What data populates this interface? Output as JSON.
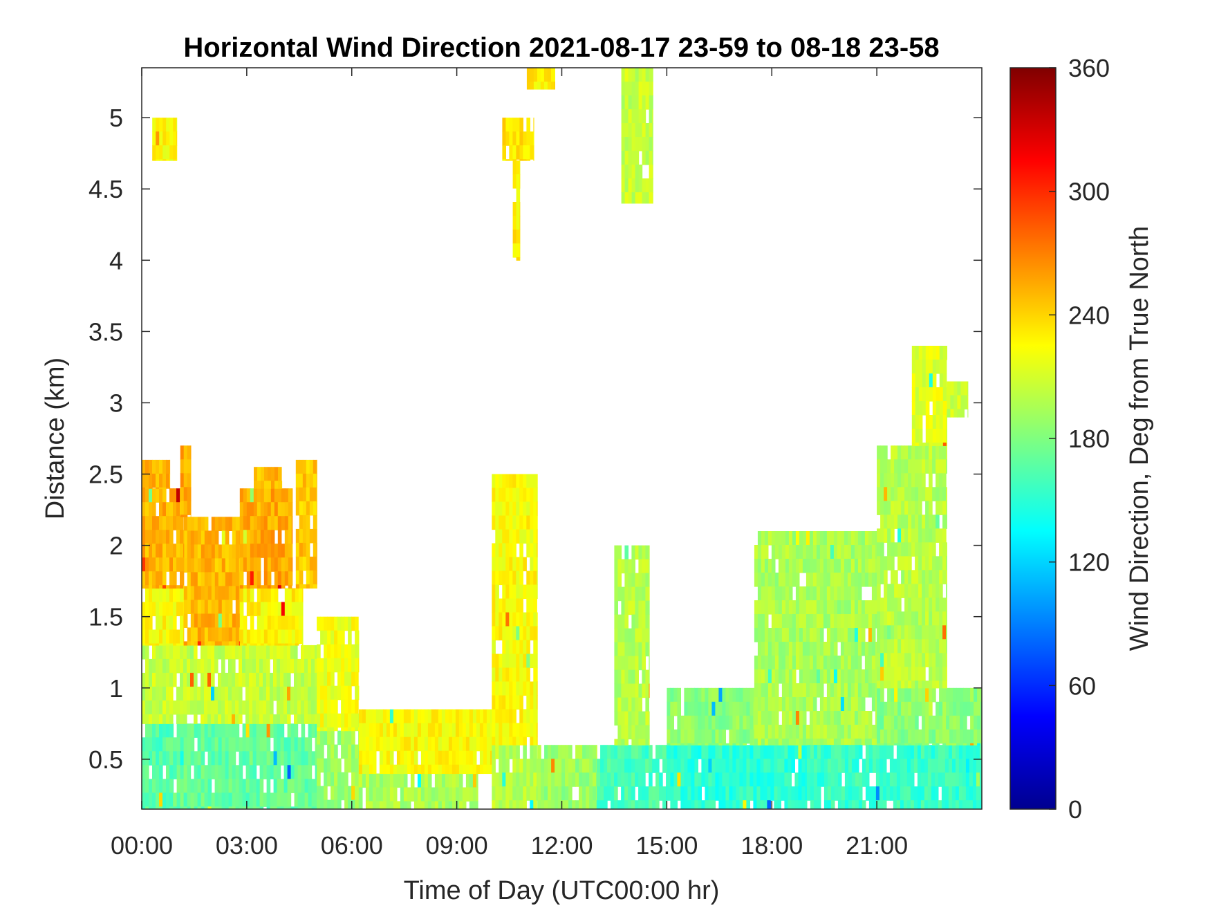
{
  "chart_data": {
    "type": "heatmap",
    "title": "Horizontal Wind Direction 2021-08-17 23-59 to 08-18 23-58",
    "xlabel": "Time of Day (UTC00:00 hr)",
    "ylabel": "Distance (km)",
    "x_range_hours": [
      0,
      24
    ],
    "y_range_km": [
      0.15,
      5.35
    ],
    "x_ticks": [
      {
        "value": 0,
        "label": "00:00"
      },
      {
        "value": 3,
        "label": "03:00"
      },
      {
        "value": 6,
        "label": "06:00"
      },
      {
        "value": 9,
        "label": "09:00"
      },
      {
        "value": 12,
        "label": "12:00"
      },
      {
        "value": 15,
        "label": "15:00"
      },
      {
        "value": 18,
        "label": "18:00"
      },
      {
        "value": 21,
        "label": "21:00"
      }
    ],
    "y_ticks": [
      {
        "value": 0.5,
        "label": "0.5"
      },
      {
        "value": 1,
        "label": "1"
      },
      {
        "value": 1.5,
        "label": "1.5"
      },
      {
        "value": 2,
        "label": "2"
      },
      {
        "value": 2.5,
        "label": "2.5"
      },
      {
        "value": 3,
        "label": "3"
      },
      {
        "value": 3.5,
        "label": "3.5"
      },
      {
        "value": 4,
        "label": "4"
      },
      {
        "value": 4.5,
        "label": "4.5"
      },
      {
        "value": 5,
        "label": "5"
      }
    ],
    "colorbar": {
      "label": "Wind Direction, Deg from True North",
      "range": [
        0,
        360
      ],
      "colormap": "jet",
      "ticks": [
        {
          "value": 0,
          "label": "0"
        },
        {
          "value": 60,
          "label": "60"
        },
        {
          "value": 120,
          "label": "120"
        },
        {
          "value": 180,
          "label": "180"
        },
        {
          "value": 240,
          "label": "240"
        },
        {
          "value": 300,
          "label": "300"
        },
        {
          "value": 360,
          "label": "360"
        }
      ]
    },
    "regions": [
      {
        "x": [
          0.0,
          0.9
        ],
        "y": [
          0.15,
          0.75
        ],
        "deg": 165
      },
      {
        "x": [
          0.9,
          5.0
        ],
        "y": [
          0.15,
          0.75
        ],
        "deg": 170
      },
      {
        "x": [
          0.0,
          5.0
        ],
        "y": [
          0.75,
          1.3
        ],
        "deg": 205
      },
      {
        "x": [
          0.0,
          1.2
        ],
        "y": [
          1.3,
          1.7
        ],
        "deg": 225
      },
      {
        "x": [
          1.2,
          2.8
        ],
        "y": [
          1.3,
          2.2
        ],
        "deg": 250
      },
      {
        "x": [
          2.8,
          4.6
        ],
        "y": [
          1.3,
          1.7
        ],
        "deg": 228
      },
      {
        "x": [
          0.0,
          1.2
        ],
        "y": [
          1.7,
          2.4
        ],
        "deg": 252
      },
      {
        "x": [
          2.8,
          4.3
        ],
        "y": [
          1.7,
          2.4
        ],
        "deg": 255
      },
      {
        "x": [
          0.0,
          0.8
        ],
        "y": [
          2.4,
          2.6
        ],
        "deg": 250
      },
      {
        "x": [
          1.1,
          1.4
        ],
        "y": [
          2.2,
          2.7
        ],
        "deg": 255
      },
      {
        "x": [
          3.2,
          4.0
        ],
        "y": [
          2.4,
          2.55
        ],
        "deg": 250
      },
      {
        "x": [
          4.4,
          5.0
        ],
        "y": [
          1.7,
          2.6
        ],
        "deg": 245
      },
      {
        "x": [
          5.0,
          6.2
        ],
        "y": [
          0.15,
          0.7
        ],
        "deg": 190
      },
      {
        "x": [
          5.0,
          6.2
        ],
        "y": [
          0.7,
          1.5
        ],
        "deg": 220
      },
      {
        "x": [
          6.2,
          9.6
        ],
        "y": [
          0.15,
          0.4
        ],
        "deg": 195
      },
      {
        "x": [
          6.2,
          10.0
        ],
        "y": [
          0.4,
          0.85
        ],
        "deg": 225
      },
      {
        "x": [
          10.0,
          11.3
        ],
        "y": [
          0.15,
          0.6
        ],
        "deg": 200
      },
      {
        "x": [
          10.0,
          11.3
        ],
        "y": [
          0.6,
          2.5
        ],
        "deg": 225
      },
      {
        "x": [
          11.3,
          13.0
        ],
        "y": [
          0.15,
          0.6
        ],
        "deg": 190
      },
      {
        "x": [
          13.0,
          15.0
        ],
        "y": [
          0.15,
          0.6
        ],
        "deg": 160
      },
      {
        "x": [
          13.5,
          14.5
        ],
        "y": [
          0.6,
          2.0
        ],
        "deg": 200
      },
      {
        "x": [
          15.0,
          19.0
        ],
        "y": [
          0.15,
          0.6
        ],
        "deg": 150
      },
      {
        "x": [
          15.0,
          17.5
        ],
        "y": [
          0.6,
          1.0
        ],
        "deg": 185
      },
      {
        "x": [
          17.5,
          21.0
        ],
        "y": [
          0.6,
          2.1
        ],
        "deg": 195
      },
      {
        "x": [
          19.0,
          24.0
        ],
        "y": [
          0.15,
          0.6
        ],
        "deg": 155
      },
      {
        "x": [
          21.0,
          24.0
        ],
        "y": [
          0.6,
          1.0
        ],
        "deg": 185
      },
      {
        "x": [
          21.0,
          23.0
        ],
        "y": [
          1.0,
          2.7
        ],
        "deg": 200
      },
      {
        "x": [
          22.0,
          23.0
        ],
        "y": [
          2.7,
          3.4
        ],
        "deg": 215
      },
      {
        "x": [
          0.3,
          1.0
        ],
        "y": [
          4.7,
          5.0
        ],
        "deg": 225
      },
      {
        "x": [
          10.3,
          11.2
        ],
        "y": [
          4.7,
          5.0
        ],
        "deg": 235
      },
      {
        "x": [
          10.6,
          10.8
        ],
        "y": [
          4.0,
          4.7
        ],
        "deg": 230
      },
      {
        "x": [
          11.0,
          11.8
        ],
        "y": [
          5.2,
          5.35
        ],
        "deg": 230
      },
      {
        "x": [
          13.7,
          14.6
        ],
        "y": [
          4.4,
          5.35
        ],
        "deg": 205
      },
      {
        "x": [
          23.0,
          23.6
        ],
        "y": [
          2.9,
          3.15
        ],
        "deg": 205
      }
    ]
  }
}
